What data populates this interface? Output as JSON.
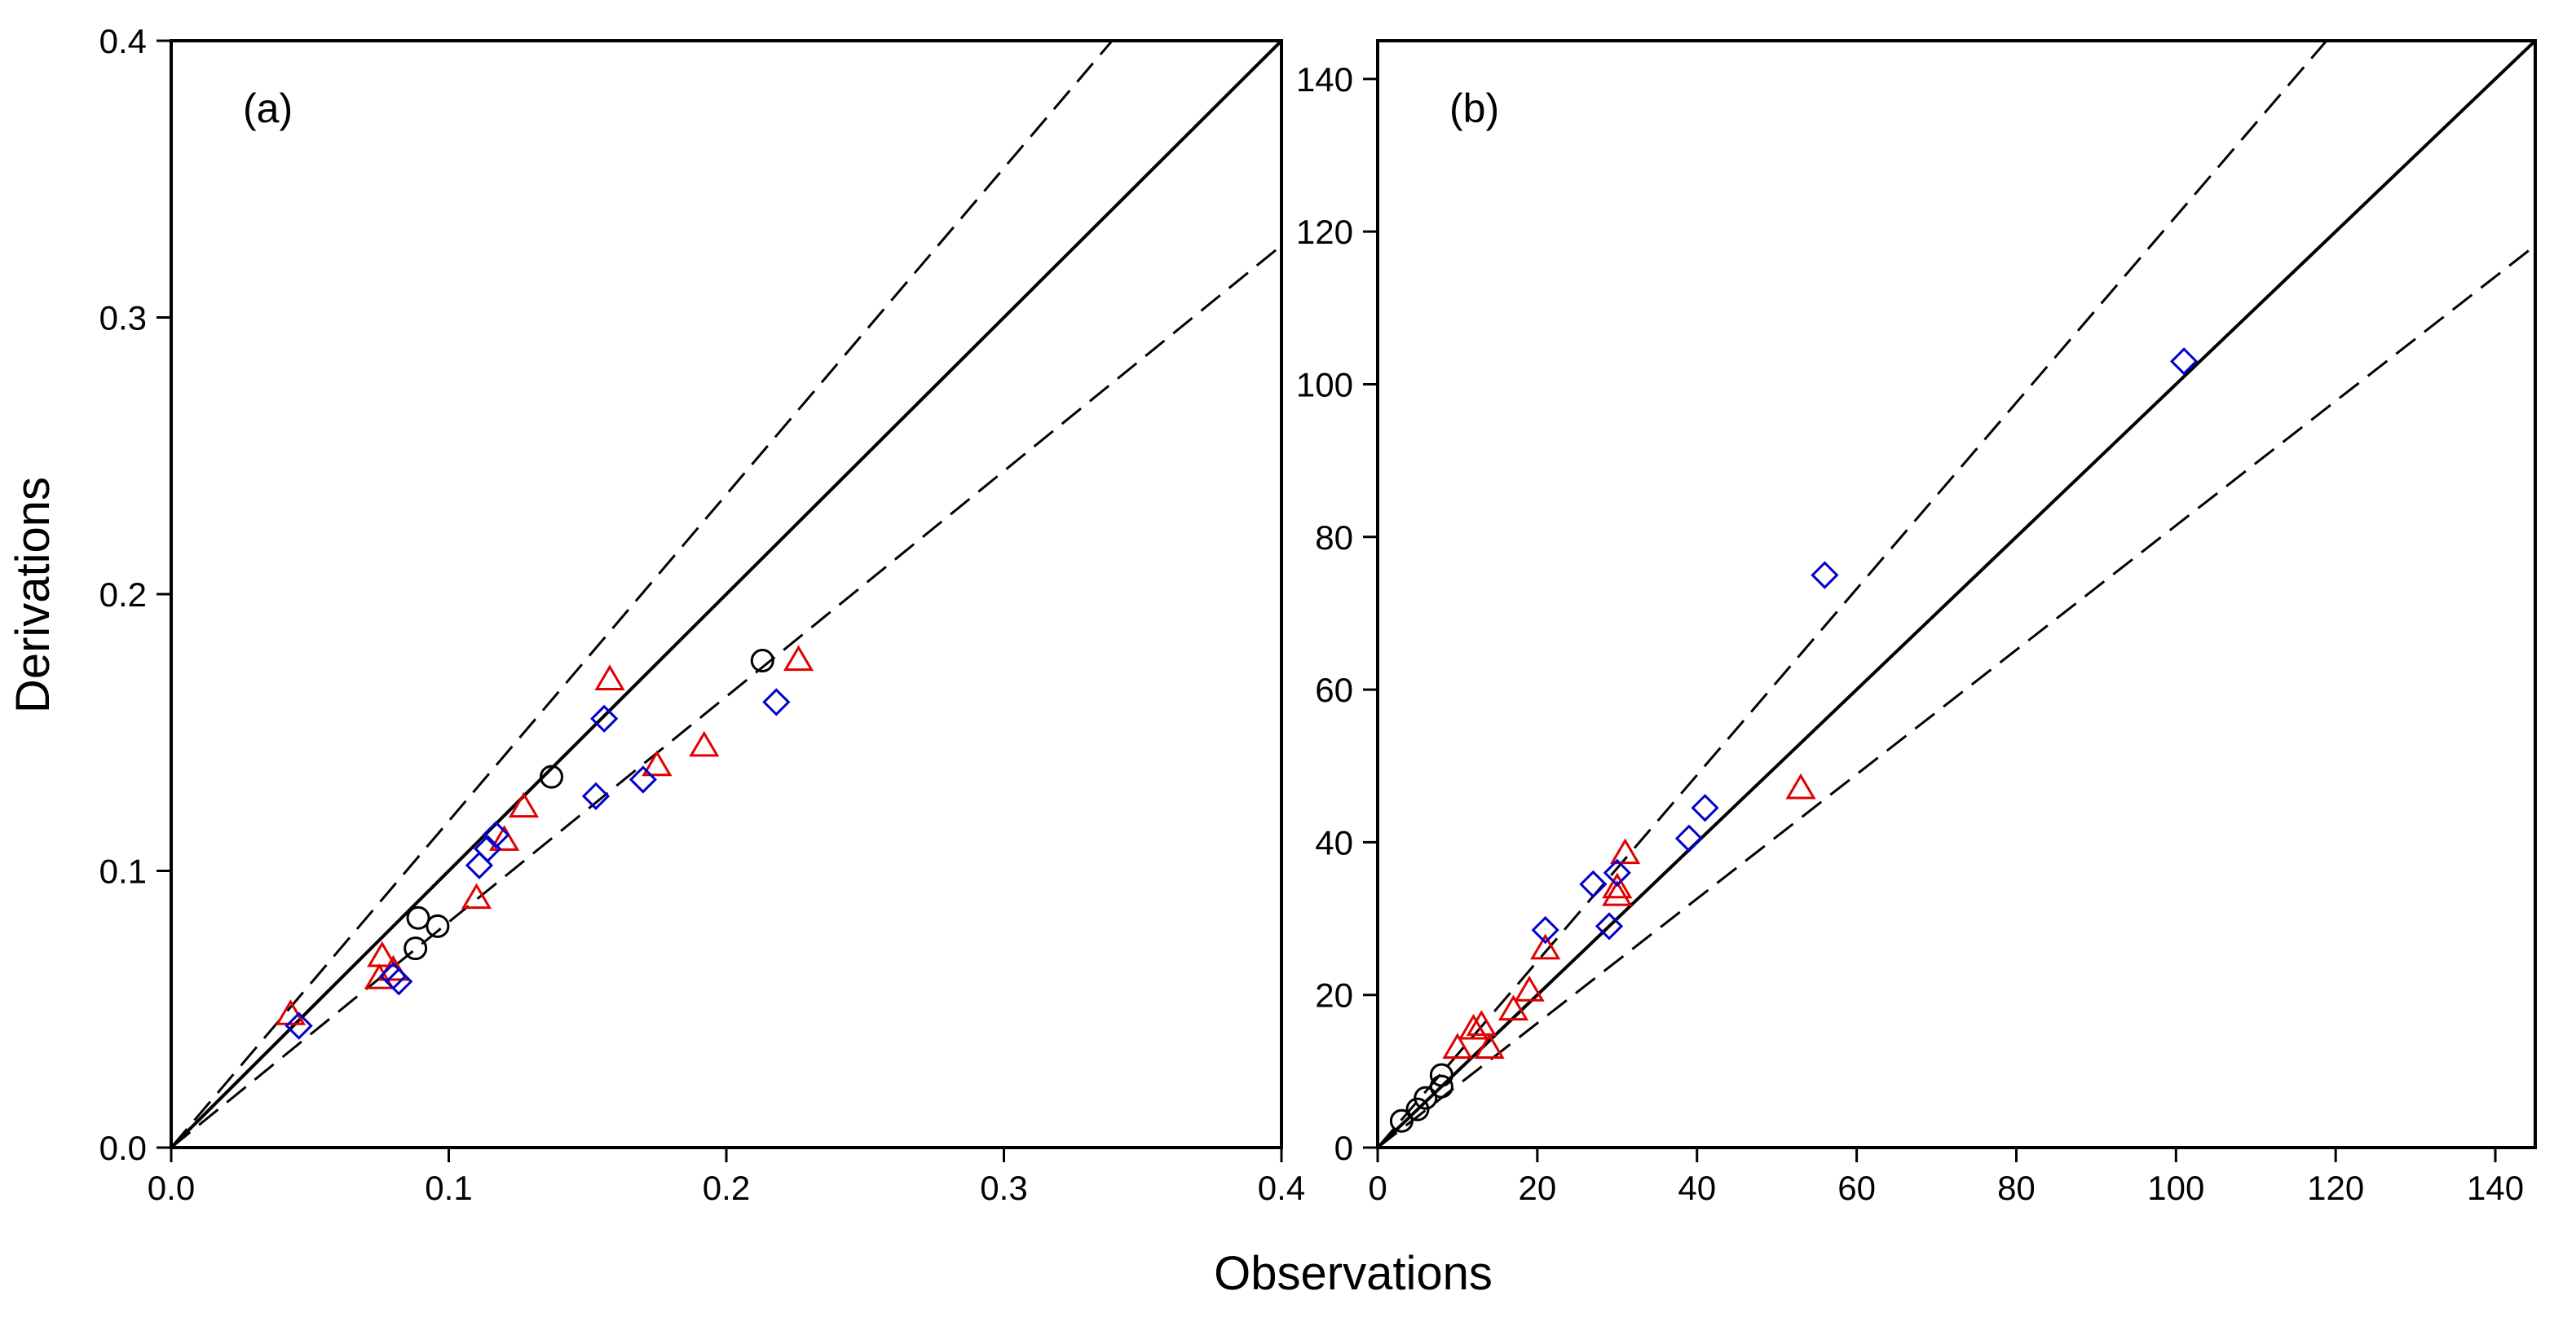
{
  "figure": {
    "ylabel": "Derivations",
    "xlabel": "Observations"
  },
  "chart_data": [
    {
      "type": "scatter",
      "panel_label": "(a)",
      "xlim": [
        0,
        0.4
      ],
      "ylim": [
        0,
        0.4
      ],
      "xticks": [
        "0.0",
        "0.1",
        "0.2",
        "0.3",
        "0.4"
      ],
      "yticks": [
        "0.0",
        "0.1",
        "0.2",
        "0.3",
        "0.4"
      ],
      "reference_lines": [
        {
          "name": "1:1 line",
          "slope": 1.0,
          "style": "solid"
        },
        {
          "name": "upper bound",
          "slope": 1.18,
          "style": "dashed"
        },
        {
          "name": "lower bound",
          "slope": 0.815,
          "style": "dashed"
        }
      ],
      "series": [
        {
          "name": "circles",
          "marker": "circle",
          "color": "#000000",
          "points": [
            [
              0.088,
              0.072
            ],
            [
              0.089,
              0.083
            ],
            [
              0.096,
              0.08
            ],
            [
              0.137,
              0.134
            ],
            [
              0.213,
              0.176
            ]
          ]
        },
        {
          "name": "triangles",
          "marker": "triangle",
          "color": "#e00000",
          "points": [
            [
              0.043,
              0.048
            ],
            [
              0.075,
              0.061
            ],
            [
              0.076,
              0.069
            ],
            [
              0.08,
              0.064
            ],
            [
              0.11,
              0.09
            ],
            [
              0.12,
              0.111
            ],
            [
              0.127,
              0.123
            ],
            [
              0.158,
              0.169
            ],
            [
              0.175,
              0.138
            ],
            [
              0.192,
              0.145
            ],
            [
              0.226,
              0.176
            ]
          ]
        },
        {
          "name": "diamonds",
          "marker": "diamond",
          "color": "#0000cc",
          "points": [
            [
              0.046,
              0.044
            ],
            [
              0.08,
              0.062
            ],
            [
              0.082,
              0.06
            ],
            [
              0.111,
              0.102
            ],
            [
              0.114,
              0.108
            ],
            [
              0.117,
              0.113
            ],
            [
              0.153,
              0.127
            ],
            [
              0.156,
              0.155
            ],
            [
              0.17,
              0.133
            ],
            [
              0.218,
              0.161
            ]
          ]
        }
      ]
    },
    {
      "type": "scatter",
      "panel_label": "(b)",
      "xlim": [
        0,
        145
      ],
      "ylim": [
        0,
        145
      ],
      "xticks": [
        "0",
        "20",
        "40",
        "60",
        "80",
        "100",
        "120",
        "140"
      ],
      "yticks": [
        "0",
        "20",
        "40",
        "60",
        "80",
        "100",
        "120",
        "140"
      ],
      "reference_lines": [
        {
          "name": "1:1 line",
          "slope": 1.0,
          "style": "solid"
        },
        {
          "name": "upper bound",
          "slope": 1.22,
          "style": "dashed"
        },
        {
          "name": "lower bound",
          "slope": 0.815,
          "style": "dashed"
        }
      ],
      "series": [
        {
          "name": "circles",
          "marker": "circle",
          "color": "#000000",
          "points": [
            [
              3,
              3.5
            ],
            [
              5,
              5
            ],
            [
              6,
              6.5
            ],
            [
              8,
              8
            ],
            [
              8,
              9.5
            ]
          ]
        },
        {
          "name": "triangles",
          "marker": "triangle",
          "color": "#e00000",
          "points": [
            [
              10,
              13
            ],
            [
              12,
              15.5
            ],
            [
              13,
              16
            ],
            [
              14,
              13
            ],
            [
              17,
              18
            ],
            [
              19,
              20.5
            ],
            [
              21,
              26
            ],
            [
              30,
              33
            ],
            [
              30,
              34
            ],
            [
              31,
              38.5
            ],
            [
              53,
              47
            ]
          ]
        },
        {
          "name": "diamonds",
          "marker": "diamond",
          "color": "#0000cc",
          "points": [
            [
              21,
              28.5
            ],
            [
              27,
              34.5
            ],
            [
              29,
              29
            ],
            [
              30,
              36
            ],
            [
              39,
              40.5
            ],
            [
              41,
              44.5
            ],
            [
              56,
              75
            ],
            [
              101,
              103
            ]
          ]
        }
      ]
    }
  ]
}
